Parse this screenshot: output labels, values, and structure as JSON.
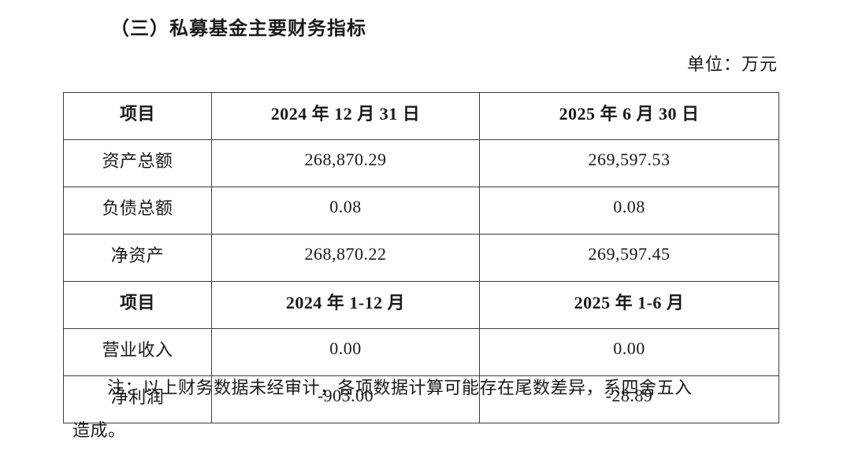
{
  "page": {
    "title": "（三）私募基金主要财务指标",
    "unit_label": "单位：万元"
  },
  "table": {
    "sections": [
      {
        "header": [
          "项目",
          "2024 年 12 月 31 日",
          "2025 年 6 月 30 日"
        ],
        "rows": [
          [
            "资产总额",
            "268,870.29",
            "269,597.53"
          ],
          [
            "负债总额",
            "0.08",
            "0.08"
          ],
          [
            "净资产",
            "268,870.22",
            "269,597.45"
          ]
        ]
      },
      {
        "header": [
          "项目",
          "2024 年 1-12 月",
          "2025 年 1-6 月"
        ],
        "rows": [
          [
            "营业收入",
            "0.00",
            "0.00"
          ],
          [
            "净利润",
            "-903.00",
            "-28.89"
          ]
        ]
      }
    ]
  },
  "note": {
    "line1": "注：以上财务数据未经审计，各项数据计算可能存在尾数差异，系四舍五入",
    "line2": "造成。"
  },
  "colors": {
    "text": "#1a1a1a",
    "border": "#3d3d3d",
    "background": "#ffffff"
  }
}
